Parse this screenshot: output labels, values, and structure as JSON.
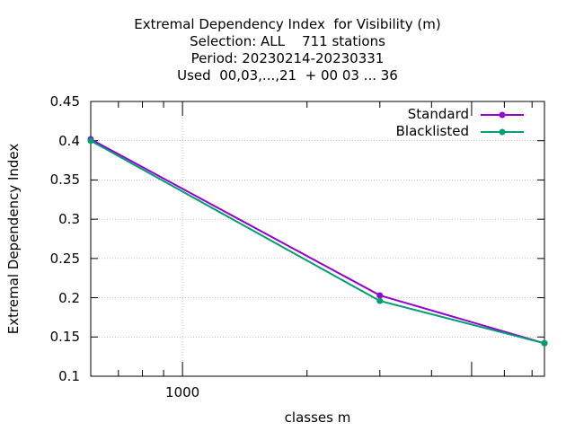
{
  "chart_data": {
    "type": "line",
    "title_lines": [
      "Extremal Dependency Index  for Visibility (m)",
      "Selection: ALL    711 stations",
      "Period: 20230214-20230331",
      "Used  00,03,...,21  + 00 03 ... 36"
    ],
    "xlabel": "classes m",
    "ylabel": "Extremal Dependency Index",
    "x_scale": "log",
    "xlim": [
      600,
      7500
    ],
    "ylim": [
      0.1,
      0.45
    ],
    "y_ticks": [
      "0.1",
      "0.15",
      "0.2",
      "0.25",
      "0.3",
      "0.35",
      "0.4",
      "0.45"
    ],
    "x_ticks": [
      "1000"
    ],
    "grid": true,
    "legend_position": "top-right",
    "series": [
      {
        "name": "Standard",
        "color": "#9400d3",
        "x": [
          600,
          3000,
          7500
        ],
        "y": [
          0.402,
          0.203,
          0.142
        ]
      },
      {
        "name": "Blacklisted",
        "color": "#009e73",
        "x": [
          600,
          3000,
          7500
        ],
        "y": [
          0.4,
          0.196,
          0.142
        ]
      }
    ]
  }
}
